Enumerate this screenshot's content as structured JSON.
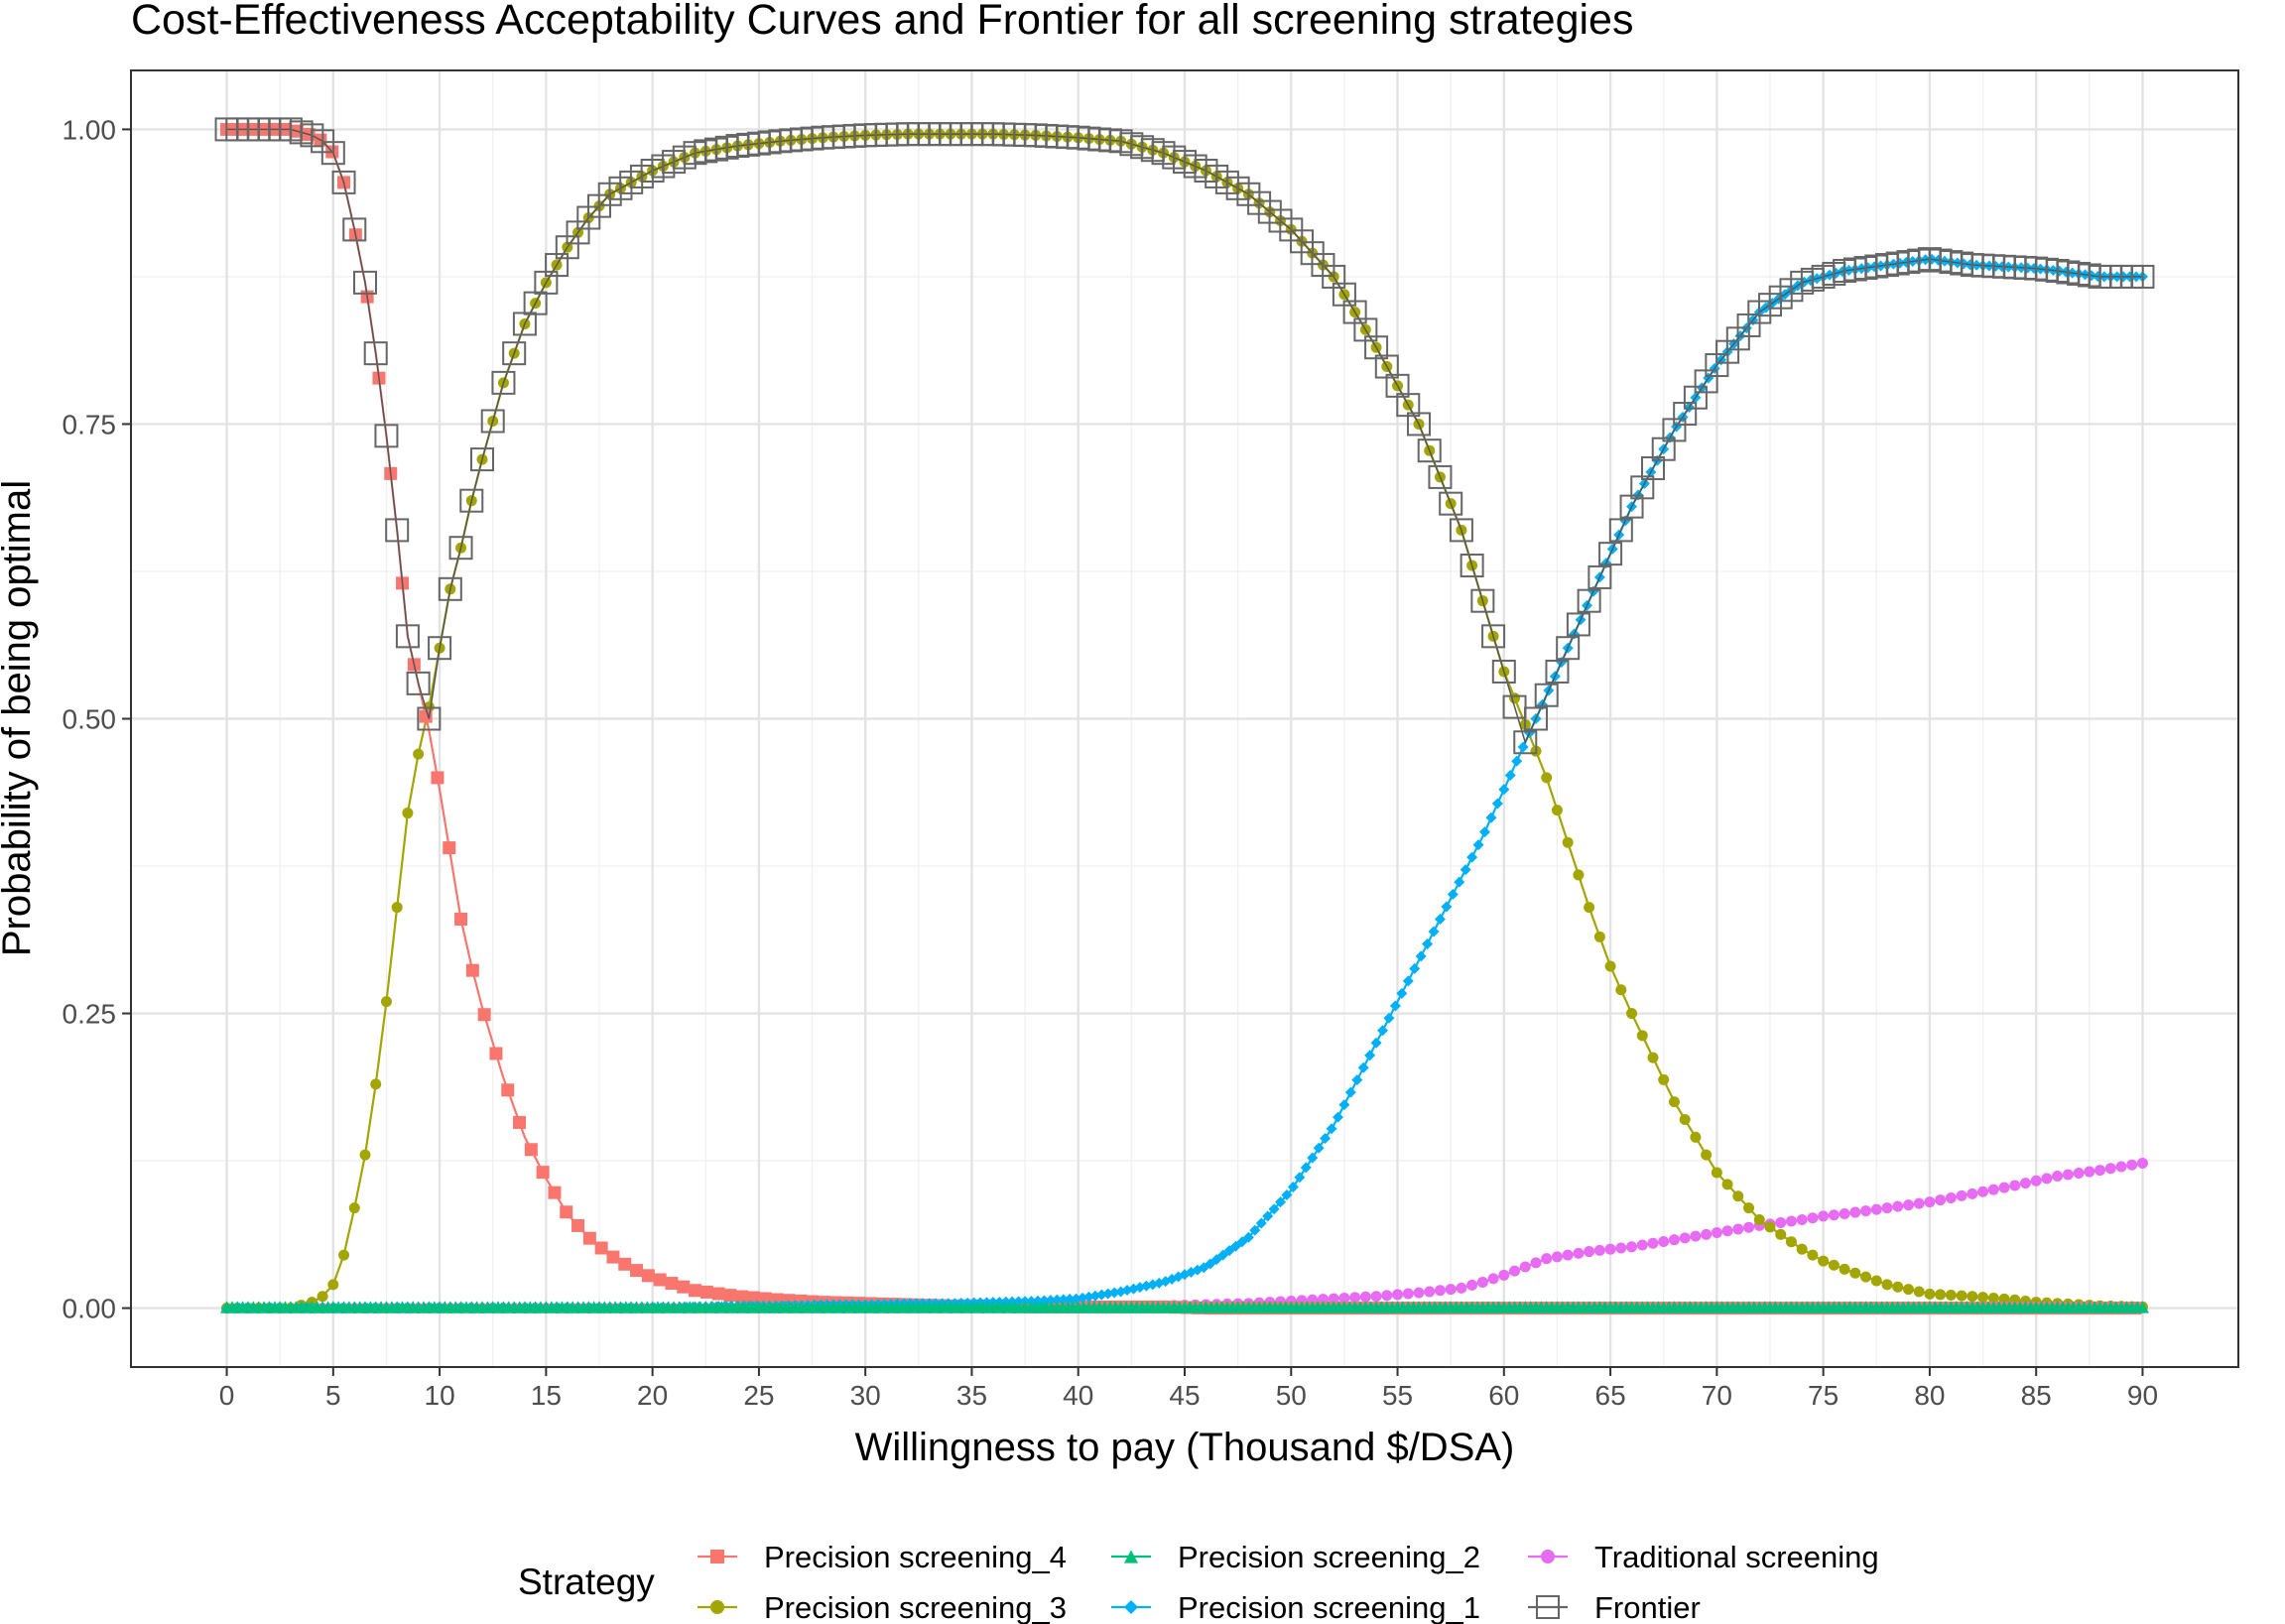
{
  "chart_data": {
    "type": "line",
    "title": "Cost-Effectiveness Acceptability Curves and Frontier for all screening strategies",
    "xlabel": "Willingness to pay (Thousand $/DSA)",
    "ylabel": "Probability of being optimal",
    "xlim": [
      -4.5,
      94.5
    ],
    "ylim": [
      -0.05,
      1.05
    ],
    "x_ticks": [
      "0",
      "5",
      "10",
      "15",
      "20",
      "25",
      "30",
      "35",
      "40",
      "45",
      "50",
      "55",
      "60",
      "65",
      "70",
      "75",
      "80",
      "85",
      "90"
    ],
    "y_ticks": [
      "0.00",
      "0.25",
      "0.50",
      "0.75",
      "1.00"
    ],
    "grid": true,
    "legend": {
      "title": "Strategy",
      "position": "bottom"
    },
    "x": [
      0,
      2,
      3,
      4,
      4.5,
      5,
      5.5,
      6,
      6.5,
      7,
      7.5,
      8,
      8.5,
      9,
      9.5,
      10,
      10.5,
      11,
      11.5,
      12,
      13,
      14,
      15,
      16,
      17,
      18,
      19,
      20,
      22,
      24,
      26,
      28,
      30,
      32,
      34,
      36,
      38,
      40,
      42,
      44,
      46,
      48,
      50,
      52,
      54,
      56,
      58,
      59,
      60,
      61,
      62,
      63,
      64,
      65,
      66,
      68,
      70,
      72,
      74,
      75,
      76,
      78,
      80,
      82,
      84,
      85,
      86,
      88,
      90
    ],
    "series": [
      {
        "name": "Precision screening_4",
        "color": "#F8766D",
        "marker": "square",
        "values": [
          1.0,
          1.0,
          1.0,
          0.995,
          0.99,
          0.98,
          0.955,
          0.915,
          0.87,
          0.81,
          0.74,
          0.66,
          0.57,
          0.53,
          0.49,
          0.44,
          0.385,
          0.33,
          0.29,
          0.255,
          0.195,
          0.145,
          0.11,
          0.08,
          0.06,
          0.045,
          0.034,
          0.026,
          0.015,
          0.01,
          0.007,
          0.005,
          0.004,
          0.003,
          0.002,
          0.002,
          0.001,
          0.001,
          0.001,
          0.001,
          0,
          0,
          0,
          0,
          0,
          0,
          0,
          0,
          0,
          0,
          0,
          0,
          0,
          0,
          0,
          0,
          0,
          0,
          0,
          0,
          0,
          0,
          0,
          0,
          0,
          0,
          0,
          0,
          0
        ]
      },
      {
        "name": "Precision screening_3",
        "color": "#A3A500",
        "marker": "circle",
        "values": [
          0,
          0,
          0,
          0.005,
          0.01,
          0.02,
          0.045,
          0.085,
          0.13,
          0.19,
          0.26,
          0.34,
          0.42,
          0.47,
          0.51,
          0.56,
          0.61,
          0.645,
          0.685,
          0.72,
          0.785,
          0.835,
          0.87,
          0.9,
          0.925,
          0.945,
          0.955,
          0.965,
          0.98,
          0.986,
          0.99,
          0.993,
          0.995,
          0.996,
          0.996,
          0.996,
          0.995,
          0.993,
          0.99,
          0.98,
          0.965,
          0.945,
          0.915,
          0.875,
          0.815,
          0.75,
          0.66,
          0.6,
          0.54,
          0.495,
          0.45,
          0.395,
          0.34,
          0.29,
          0.25,
          0.175,
          0.115,
          0.075,
          0.05,
          0.04,
          0.033,
          0.02,
          0.012,
          0.01,
          0.007,
          0.005,
          0.004,
          0.002,
          0.001
        ]
      },
      {
        "name": "Precision screening_2",
        "color": "#00BF7D",
        "marker": "triangle",
        "values": [
          0.001,
          0.001,
          0.001,
          0.001,
          0.001,
          0.001,
          0.001,
          0.001,
          0.001,
          0.001,
          0.001,
          0.001,
          0.001,
          0.001,
          0.001,
          0.001,
          0.001,
          0.001,
          0.001,
          0.001,
          0.001,
          0.001,
          0.001,
          0.001,
          0.001,
          0.001,
          0.001,
          0.001,
          0.001,
          0.001,
          0.001,
          0.001,
          0.001,
          0.001,
          0.001,
          0.001,
          0.001,
          0.001,
          0.001,
          0.001,
          0.001,
          0.001,
          0.001,
          0.001,
          0.001,
          0.001,
          0.001,
          0.001,
          0.001,
          0.001,
          0.001,
          0.001,
          0.001,
          0.001,
          0.001,
          0.001,
          0.001,
          0.001,
          0.001,
          0.001,
          0.001,
          0.001,
          0.001,
          0.001,
          0.001,
          0.001,
          0.001,
          0.001,
          0.001
        ]
      },
      {
        "name": "Precision screening_1",
        "color": "#00B0F6",
        "marker": "diamond",
        "values": [
          0,
          0,
          0,
          0,
          0,
          0,
          0,
          0,
          0,
          0,
          0,
          0,
          0,
          0,
          0,
          0,
          0,
          0,
          0,
          0,
          0,
          0,
          0,
          0,
          0,
          0,
          0,
          0,
          0.001,
          0.002,
          0.002,
          0.003,
          0.003,
          0.004,
          0.004,
          0.005,
          0.006,
          0.008,
          0.014,
          0.022,
          0.035,
          0.06,
          0.1,
          0.155,
          0.225,
          0.295,
          0.365,
          0.4,
          0.44,
          0.48,
          0.52,
          0.56,
          0.6,
          0.64,
          0.68,
          0.745,
          0.8,
          0.845,
          0.87,
          0.875,
          0.88,
          0.885,
          0.89,
          0.885,
          0.883,
          0.882,
          0.88,
          0.875,
          0.875
        ]
      },
      {
        "name": "Traditional screening",
        "color": "#E76BF3",
        "marker": "circle",
        "values": [
          0,
          0,
          0,
          0,
          0,
          0,
          0,
          0,
          0,
          0,
          0,
          0,
          0,
          0,
          0,
          0,
          0,
          0,
          0,
          0,
          0,
          0,
          0,
          0,
          0,
          0,
          0,
          0,
          0,
          0,
          0,
          0,
          0,
          0,
          0,
          0,
          0,
          0,
          0.001,
          0.002,
          0.003,
          0.004,
          0.006,
          0.008,
          0.01,
          0.013,
          0.017,
          0.022,
          0.028,
          0.035,
          0.042,
          0.045,
          0.048,
          0.05,
          0.052,
          0.058,
          0.064,
          0.07,
          0.075,
          0.078,
          0.08,
          0.085,
          0.09,
          0.097,
          0.104,
          0.108,
          0.112,
          0.117,
          0.123
        ]
      }
    ],
    "frontier": {
      "name": "Frontier",
      "color": "#666666",
      "marker": "open-square",
      "values": [
        1.0,
        1.0,
        1.0,
        0.995,
        0.99,
        0.98,
        0.955,
        0.915,
        0.87,
        0.81,
        0.74,
        0.66,
        0.57,
        0.53,
        0.5,
        0.56,
        0.61,
        0.645,
        0.685,
        0.72,
        0.785,
        0.835,
        0.87,
        0.9,
        0.925,
        0.945,
        0.955,
        0.965,
        0.98,
        0.986,
        0.99,
        0.993,
        0.995,
        0.996,
        0.996,
        0.996,
        0.995,
        0.993,
        0.99,
        0.98,
        0.965,
        0.945,
        0.915,
        0.875,
        0.815,
        0.75,
        0.66,
        0.6,
        0.54,
        0.48,
        0.52,
        0.56,
        0.6,
        0.64,
        0.68,
        0.745,
        0.8,
        0.845,
        0.87,
        0.875,
        0.88,
        0.885,
        0.89,
        0.885,
        0.883,
        0.882,
        0.88,
        0.875,
        0.875
      ]
    }
  }
}
